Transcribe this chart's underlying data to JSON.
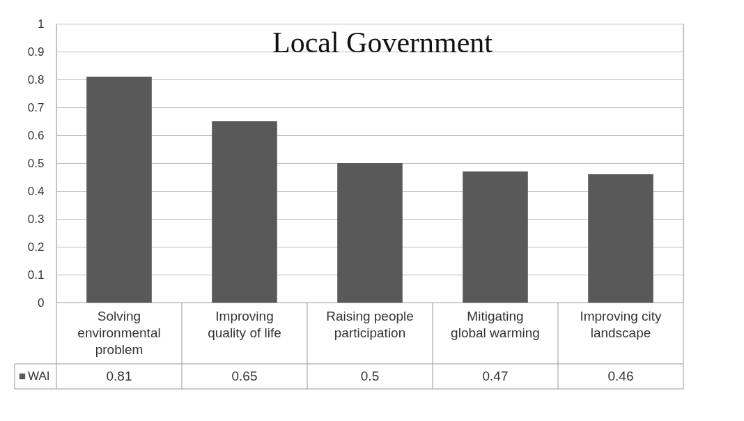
{
  "chart_data": {
    "type": "bar",
    "title": "Local Government",
    "categories": [
      "Solving environmental problem",
      "Improving quality of life",
      "Raising people participation",
      "Mitigating global warming",
      "Improving city landscape"
    ],
    "series": [
      {
        "name": "WAI",
        "color": "#595959",
        "values": [
          0.81,
          0.65,
          0.5,
          0.47,
          0.46
        ]
      }
    ],
    "ylim": [
      0,
      1
    ],
    "yticks": [
      0,
      0.1,
      0.2,
      0.3,
      0.4,
      0.5,
      0.6,
      0.7,
      0.8,
      0.9,
      1
    ],
    "grid": "y",
    "legend": "bottom",
    "data_labels": true
  }
}
